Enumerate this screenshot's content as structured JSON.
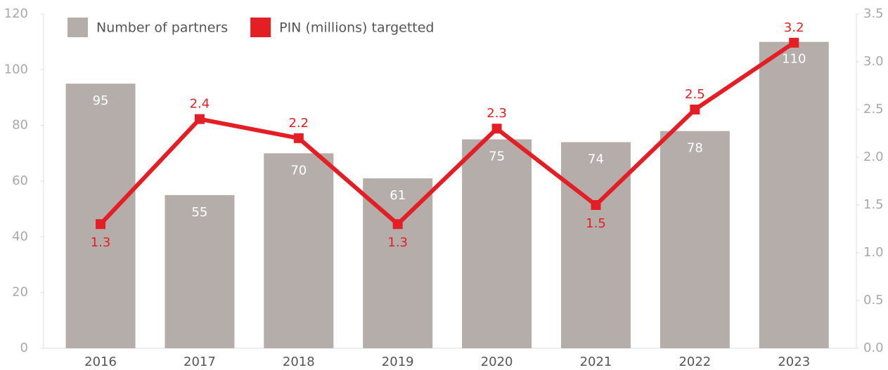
{
  "chart_data": {
    "type": "combo",
    "categories": [
      "2016",
      "2017",
      "2018",
      "2019",
      "2020",
      "2021",
      "2022",
      "2023"
    ],
    "series": [
      {
        "name": "Number of partners",
        "type": "bar",
        "color": "#b5ada9",
        "values": [
          95,
          55,
          70,
          61,
          75,
          74,
          78,
          110
        ]
      },
      {
        "name": "PIN (millions) targetted",
        "type": "line",
        "axis": "y2",
        "color": "#e31e24",
        "values": [
          1.3,
          2.4,
          2.2,
          1.3,
          2.3,
          1.5,
          2.5,
          3.2
        ]
      }
    ],
    "ylim": [
      0,
      120
    ],
    "yticks": [
      0,
      20,
      40,
      60,
      80,
      100,
      120
    ],
    "y2lim": [
      0,
      3.5
    ],
    "y2ticks": [
      {
        "value": 0,
        "label": "0.0"
      },
      0.5,
      {
        "value": 1,
        "label": "1.0"
      },
      1.5,
      {
        "value": 2,
        "label": "2.0"
      },
      2.5,
      {
        "value": 3,
        "label": "3.0"
      },
      3.5
    ],
    "grid": false,
    "legend": "top-left"
  }
}
